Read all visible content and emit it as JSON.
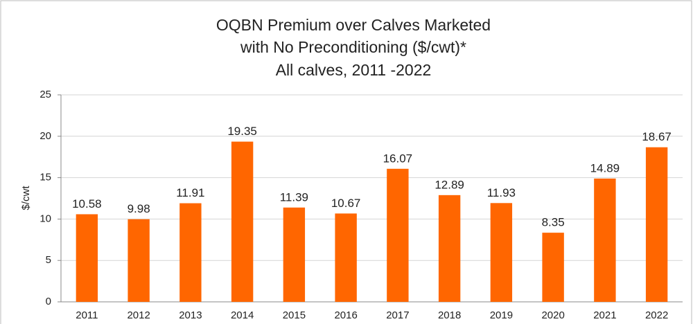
{
  "chart_data": {
    "type": "bar",
    "title": [
      "OQBN Premium over Calves Marketed",
      "with No Preconditioning ($/cwt)*",
      "All calves, 2011 -2022"
    ],
    "y_label": "$/cwt",
    "categories": [
      "2011",
      "2012",
      "2013",
      "2014",
      "2015",
      "2016",
      "2017",
      "2018",
      "2019",
      "2020",
      "2021",
      "2022"
    ],
    "values": [
      10.58,
      9.98,
      11.91,
      19.35,
      11.39,
      10.67,
      16.07,
      12.89,
      11.93,
      8.35,
      14.89,
      18.67
    ],
    "color": "#ff6600",
    "ylim": [
      0,
      25
    ],
    "yticks": [
      0,
      5,
      10,
      15,
      20,
      25
    ],
    "grid": true
  }
}
